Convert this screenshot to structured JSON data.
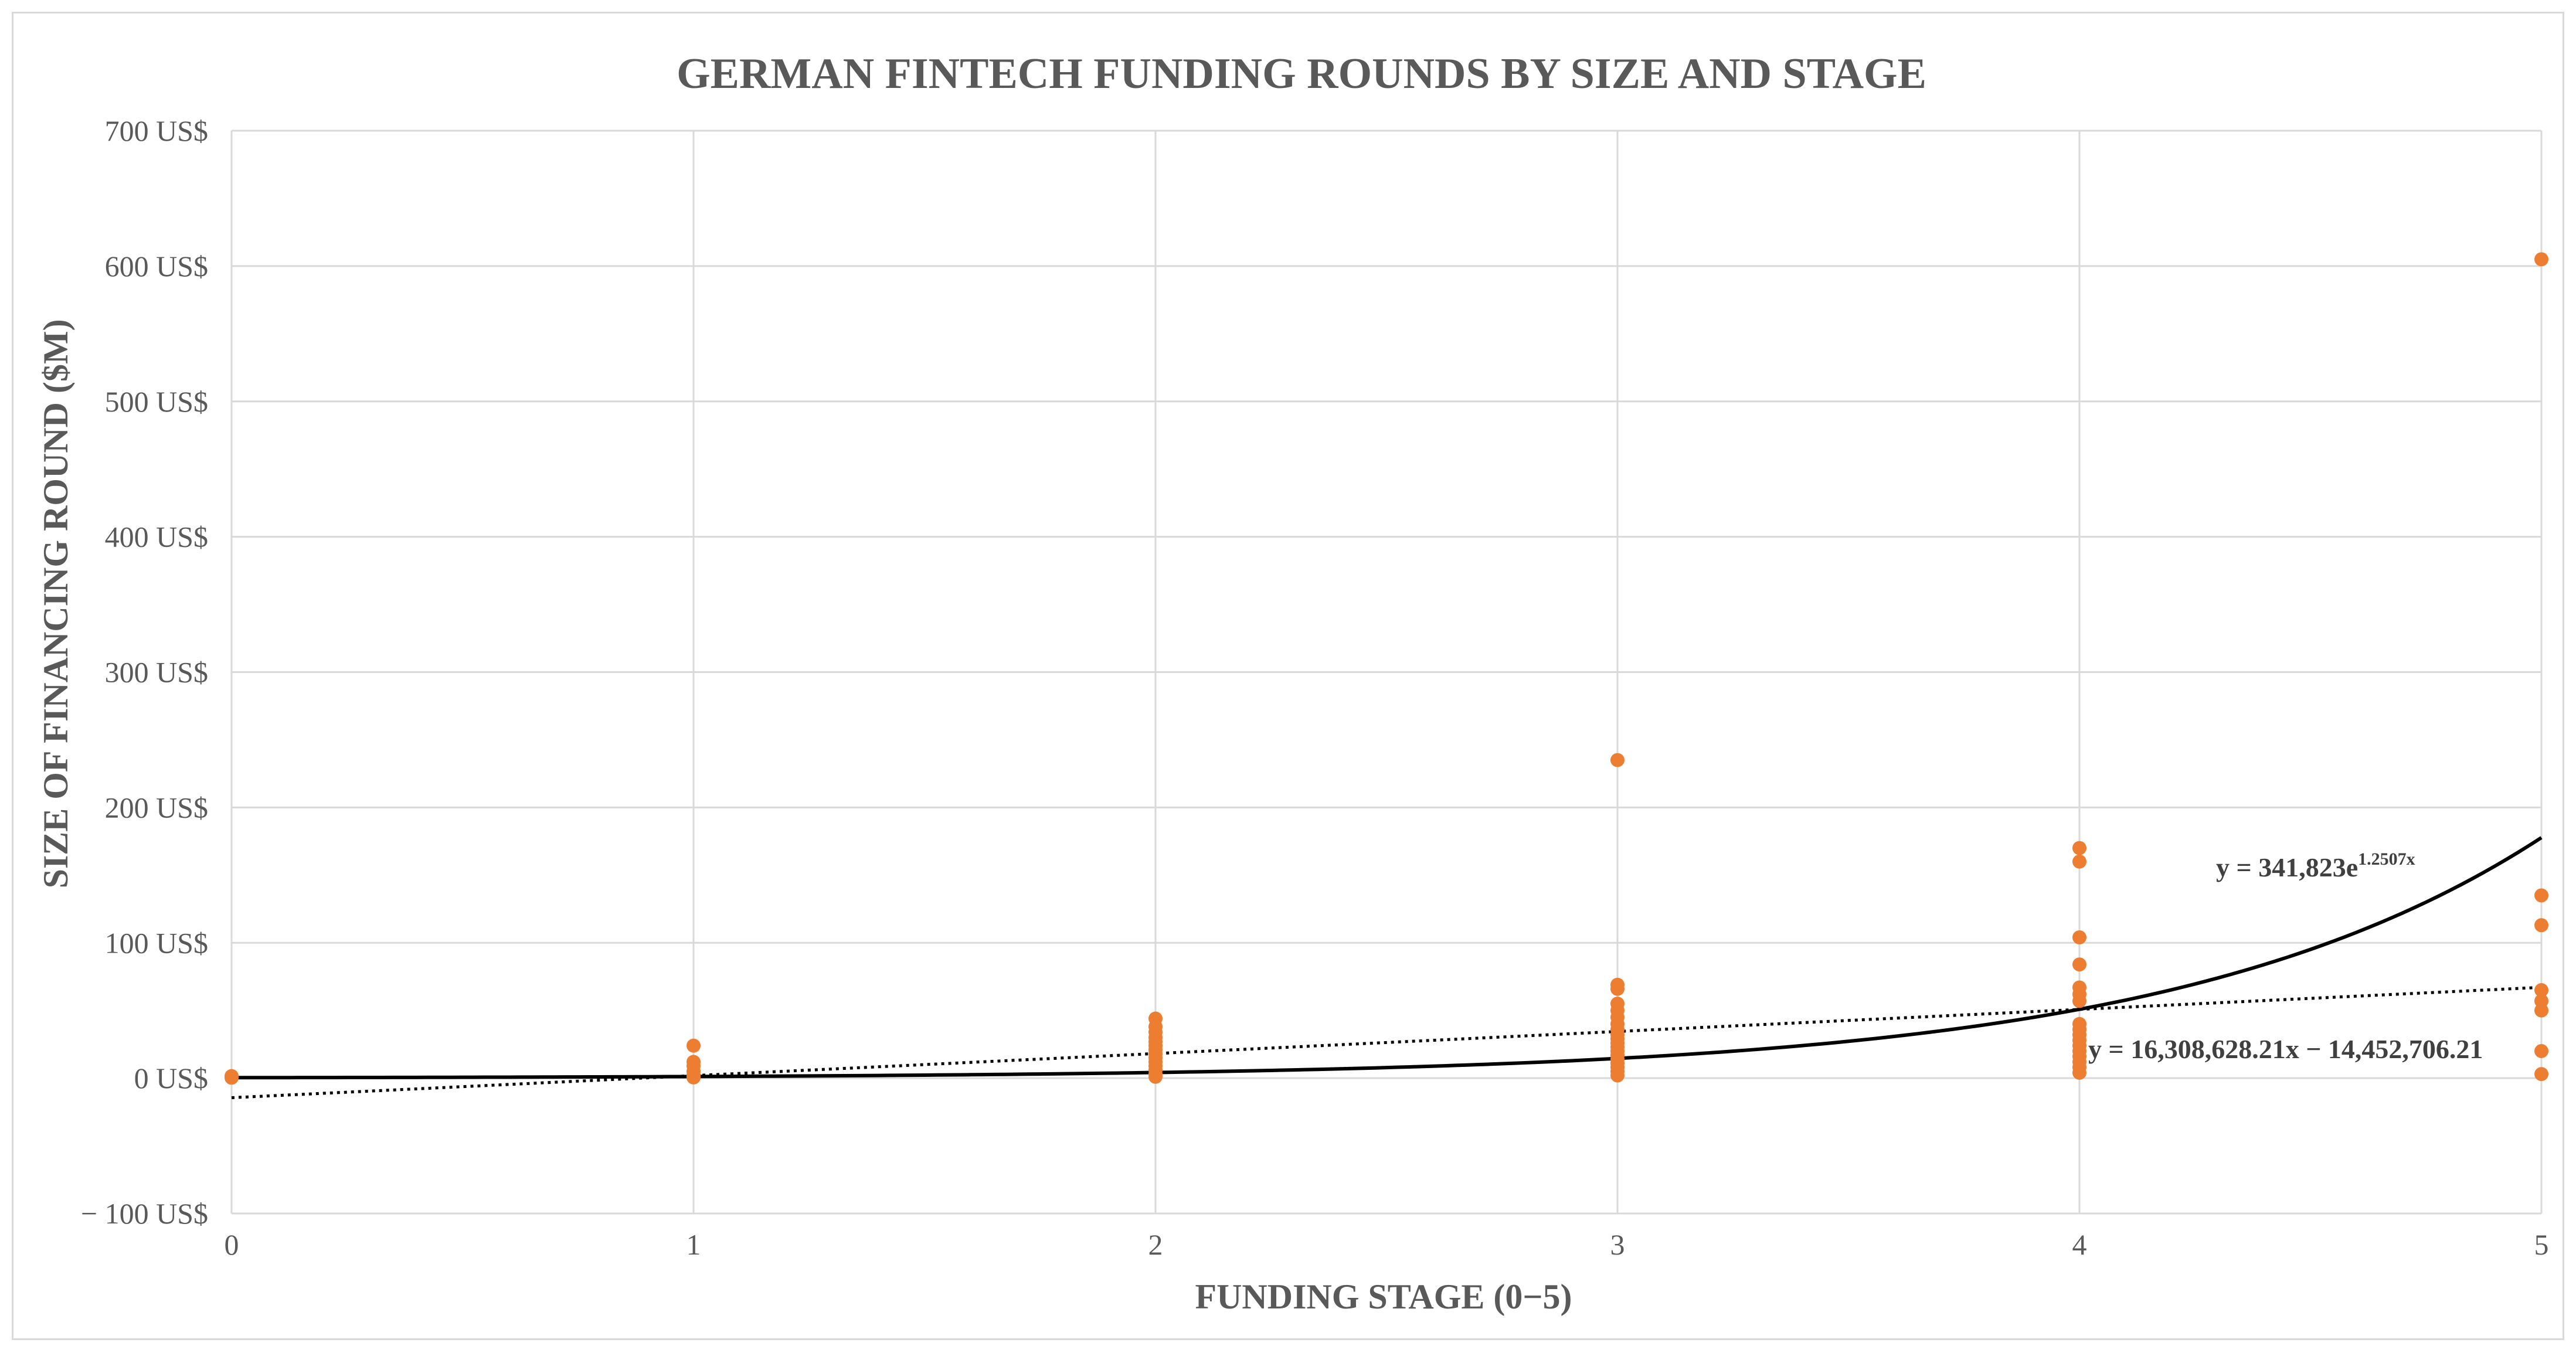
{
  "chart_data": {
    "type": "scatter",
    "title": "GERMAN FINTECH FUNDING ROUNDS BY SIZE AND STAGE",
    "xlabel": "FUNDING STAGE (0−5)",
    "ylabel": "SIZE OF FINANCING ROUND ($M)",
    "xlim": [
      0,
      5
    ],
    "ylim": [
      -100,
      700
    ],
    "x_ticks": [
      0,
      1,
      2,
      3,
      4,
      5
    ],
    "x_tick_labels": [
      "0",
      "1",
      "2",
      "3",
      "4",
      "5"
    ],
    "y_ticks": [
      -100,
      0,
      100,
      200,
      300,
      400,
      500,
      600,
      700
    ],
    "y_tick_labels": [
      "− 100 US$",
      "0 US$",
      "100 US$",
      "200 US$",
      "300 US$",
      "400 US$",
      "500 US$",
      "600 US$",
      "700 US$"
    ],
    "grid": true,
    "marker_color": "#ed7d31",
    "series": [
      {
        "points": [
          [
            0,
            0.3
          ],
          [
            0,
            1.5
          ],
          [
            1,
            0.5
          ],
          [
            1,
            2
          ],
          [
            1,
            5
          ],
          [
            1,
            9
          ],
          [
            1,
            12
          ],
          [
            1,
            24
          ],
          [
            2,
            1
          ],
          [
            2,
            3
          ],
          [
            2,
            6
          ],
          [
            2,
            9
          ],
          [
            2,
            12
          ],
          [
            2,
            15
          ],
          [
            2,
            18
          ],
          [
            2,
            21
          ],
          [
            2,
            24
          ],
          [
            2,
            27
          ],
          [
            2,
            30
          ],
          [
            2,
            34
          ],
          [
            2,
            38
          ],
          [
            2,
            44
          ],
          [
            3,
            2
          ],
          [
            3,
            5
          ],
          [
            3,
            8
          ],
          [
            3,
            11
          ],
          [
            3,
            14
          ],
          [
            3,
            17
          ],
          [
            3,
            20
          ],
          [
            3,
            23
          ],
          [
            3,
            26
          ],
          [
            3,
            29
          ],
          [
            3,
            32
          ],
          [
            3,
            36
          ],
          [
            3,
            40
          ],
          [
            3,
            45
          ],
          [
            3,
            50
          ],
          [
            3,
            55
          ],
          [
            3,
            66
          ],
          [
            3,
            69
          ],
          [
            3,
            235
          ],
          [
            4,
            4
          ],
          [
            4,
            8
          ],
          [
            4,
            12
          ],
          [
            4,
            16
          ],
          [
            4,
            20
          ],
          [
            4,
            24
          ],
          [
            4,
            28
          ],
          [
            4,
            32
          ],
          [
            4,
            36
          ],
          [
            4,
            40
          ],
          [
            4,
            57
          ],
          [
            4,
            62
          ],
          [
            4,
            67
          ],
          [
            4,
            84
          ],
          [
            4,
            104
          ],
          [
            4,
            160
          ],
          [
            4,
            170
          ],
          [
            5,
            3
          ],
          [
            5,
            20
          ],
          [
            5,
            50
          ],
          [
            5,
            57
          ],
          [
            5,
            65
          ],
          [
            5,
            113
          ],
          [
            5,
            135
          ],
          [
            5,
            605
          ]
        ]
      }
    ],
    "trendlines": [
      {
        "kind": "exponential",
        "label": "y = 341,823e",
        "label_exponent": "1.2507x",
        "a_musd": 0.341823,
        "b": 1.2507,
        "color": "#000000",
        "style": "solid"
      },
      {
        "kind": "linear",
        "label": "y = 16,308,628.21x − 14,452,706.21",
        "slope_musd": 16.30862821,
        "intercept_musd": -14.45270621,
        "color": "#000000",
        "style": "dotted"
      }
    ]
  }
}
